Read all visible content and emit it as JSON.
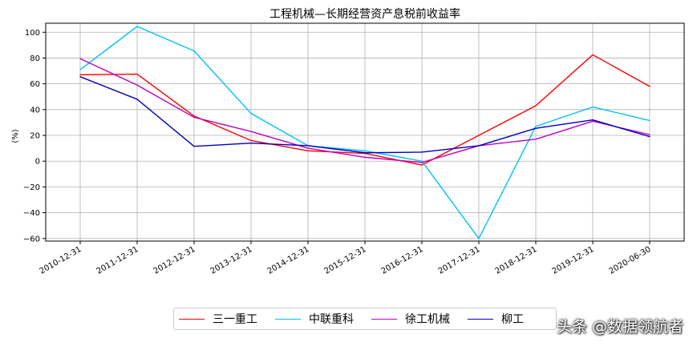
{
  "chart_data": {
    "type": "line",
    "title": "工程机械—长期经营资产息税前收益率",
    "ylabel": "(%)",
    "xlabel": "",
    "categories": [
      "2010-12-31",
      "2011-12-31",
      "2012-12-31",
      "2013-12-31",
      "2014-12-31",
      "2015-12-31",
      "2016-12-31",
      "2017-12-31",
      "2018-12-31",
      "2019-12-31",
      "2020-06-30"
    ],
    "ylim": [
      -62,
      107
    ],
    "yticks": [
      -60,
      -40,
      -20,
      0,
      20,
      40,
      60,
      80,
      100
    ],
    "grid": true,
    "legend_position": "bottom-center",
    "series": [
      {
        "name": "三一重工",
        "color": "#ff0000",
        "values": [
          67,
          67.5,
          35,
          16,
          8,
          6,
          -3,
          20,
          43,
          82.5,
          58
        ]
      },
      {
        "name": "中联重科",
        "color": "#00bfff",
        "values": [
          71,
          104.5,
          85.5,
          37,
          12,
          8,
          0,
          -60,
          27,
          42,
          31.5
        ]
      },
      {
        "name": "徐工机械",
        "color": "#bf00bf",
        "values": [
          79.5,
          59,
          34,
          23,
          10,
          3,
          -1,
          12,
          17,
          31,
          20.5
        ]
      },
      {
        "name": "柳工",
        "color": "#0000bf",
        "values": [
          65.5,
          48,
          11.5,
          14,
          12,
          6.5,
          7,
          12,
          25.5,
          32,
          19
        ]
      }
    ]
  },
  "watermark": "头条 @数据领航者"
}
